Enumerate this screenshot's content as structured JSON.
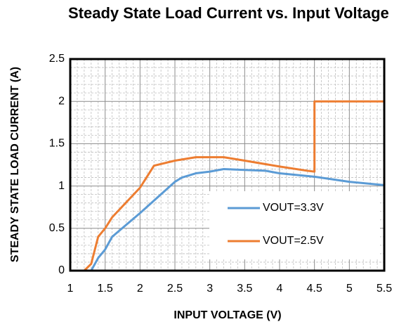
{
  "chart_data": {
    "type": "line",
    "title": "Steady State Load Current vs. Input Voltage",
    "xlabel": "INPUT VOLTAGE (V)",
    "ylabel": "STEADY STATE LOAD CURRENT (A)",
    "xlim": [
      1,
      5.5
    ],
    "ylim": [
      0,
      2.5
    ],
    "xticks": [
      1,
      1.5,
      2,
      2.5,
      3,
      3.5,
      4,
      4.5,
      5,
      5.5
    ],
    "yticks": [
      0,
      0.5,
      1,
      1.5,
      2,
      2.5
    ],
    "grid": true,
    "minor_grid": true,
    "legend": "lower right",
    "series": [
      {
        "name": "VOUT=3.3V",
        "color": "#5b9bd5",
        "x": [
          1.3,
          1.4,
          1.5,
          1.6,
          1.7,
          2,
          2.5,
          2.6,
          2.8,
          3,
          3.2,
          3.5,
          3.8,
          4,
          4.5,
          5,
          5.5
        ],
        "values": [
          0,
          0.15,
          0.25,
          0.4,
          0.47,
          0.68,
          1.05,
          1.1,
          1.15,
          1.17,
          1.2,
          1.19,
          1.18,
          1.15,
          1.11,
          1.05,
          1.01
        ]
      },
      {
        "name": "VOUT=2.5V",
        "color": "#ed7d31",
        "x": [
          1.2,
          1.3,
          1.4,
          1.5,
          1.6,
          2,
          2.2,
          2.5,
          2.8,
          3.2,
          3.5,
          4,
          4.4,
          4.5,
          4.5,
          5.5
        ],
        "values": [
          0,
          0.08,
          0.4,
          0.5,
          0.63,
          0.98,
          1.24,
          1.3,
          1.34,
          1.34,
          1.3,
          1.23,
          1.18,
          1.17,
          2,
          2
        ]
      }
    ]
  }
}
